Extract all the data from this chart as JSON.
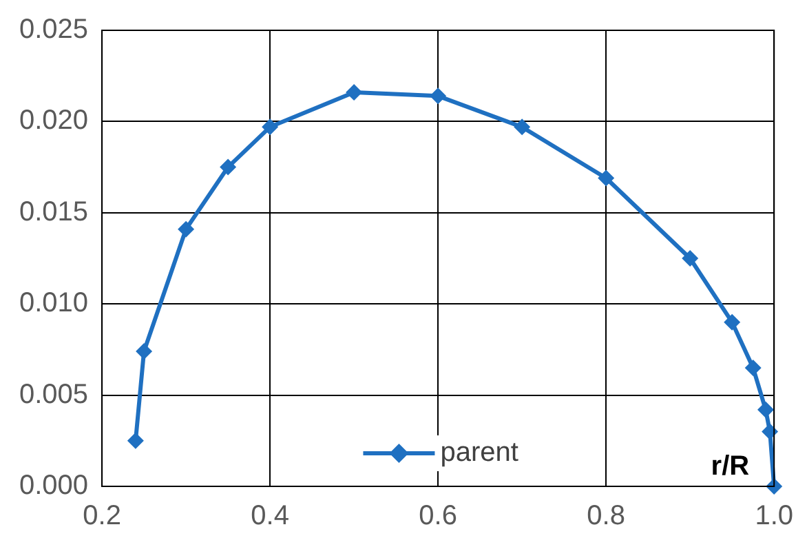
{
  "chart_data": {
    "type": "line",
    "xlabel": "r/R",
    "xlim": [
      0.2,
      1.0
    ],
    "xticks": [
      {
        "value": 0.2,
        "label": "0.2"
      },
      {
        "value": 0.4,
        "label": "0.4"
      },
      {
        "value": 0.6,
        "label": "0.6"
      },
      {
        "value": 0.8,
        "label": "0.8"
      },
      {
        "value": 1.0,
        "label": "1.0"
      }
    ],
    "ylim": [
      0,
      0.025
    ],
    "yticks": [
      {
        "value": 0,
        "label": "0.000"
      },
      {
        "value": 0.005,
        "label": "0.005"
      },
      {
        "value": 0.01,
        "label": "0.010"
      },
      {
        "value": 0.015,
        "label": "0.015"
      },
      {
        "value": 0.02,
        "label": "0.020"
      },
      {
        "value": 0.025,
        "label": "0.025"
      }
    ],
    "grid": true,
    "legend": "bottom",
    "marker": "diamond",
    "line_style": "solid",
    "series": [
      {
        "name": "parent",
        "color": "#1f70c1",
        "x": [
          0.24,
          0.25,
          0.3,
          0.35,
          0.4,
          0.5,
          0.6,
          0.7,
          0.8,
          0.9,
          0.95,
          0.975,
          0.99,
          0.995,
          1.0
        ],
        "values": [
          0.0025,
          0.0074,
          0.0141,
          0.0175,
          0.0197,
          0.0216,
          0.0214,
          0.0197,
          0.0169,
          0.0125,
          0.009,
          0.0065,
          0.0042,
          0.003,
          0.0
        ]
      }
    ]
  }
}
